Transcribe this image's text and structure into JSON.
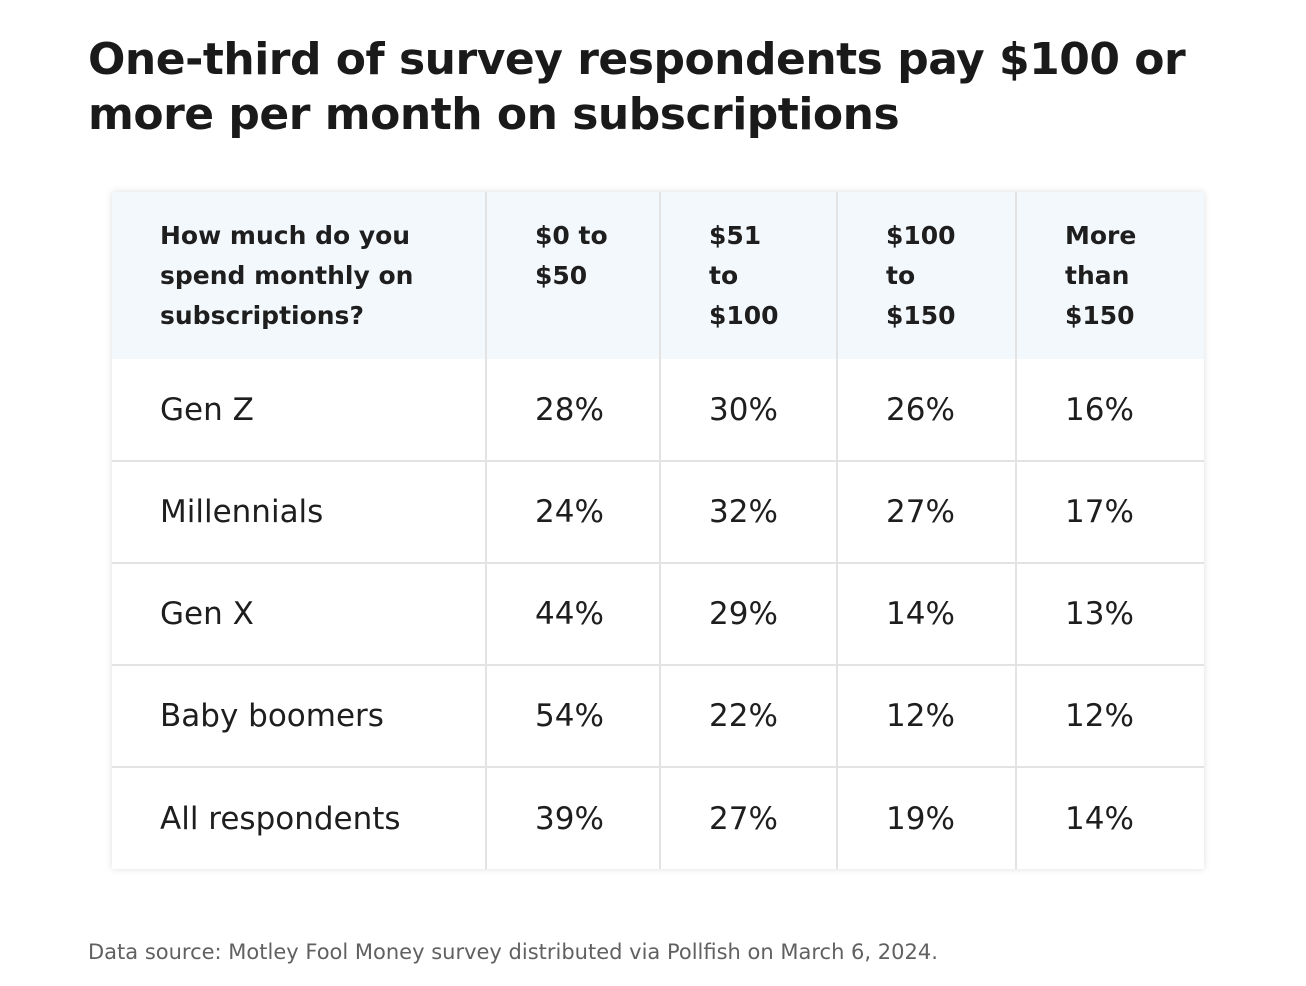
{
  "title": "One-third of survey respondents pay $100 or more per month on subscriptions",
  "table": {
    "headers": [
      "How much do you spend monthly on subscriptions?",
      "$0 to $50",
      "$51 to $100",
      "$100 to $150",
      "More than $150"
    ],
    "rows": [
      {
        "label": "Gen Z",
        "values": [
          "28%",
          "30%",
          "26%",
          "16%"
        ]
      },
      {
        "label": "Millennials",
        "values": [
          "24%",
          "32%",
          "27%",
          "17%"
        ]
      },
      {
        "label": "Gen X",
        "values": [
          "44%",
          "29%",
          "14%",
          "13%"
        ]
      },
      {
        "label": "Baby boomers",
        "values": [
          "54%",
          "22%",
          "12%",
          "12%"
        ]
      },
      {
        "label": "All respondents",
        "values": [
          "39%",
          "27%",
          "19%",
          "14%"
        ]
      }
    ]
  },
  "source": "Data source: Motley Fool Money survey distributed via Pollfish on March 6, 2024.",
  "colors": {
    "header_bg": "#f3f8fc",
    "grid": "#e3e3e3",
    "text": "#1e1e1e",
    "source_text": "#616161"
  }
}
